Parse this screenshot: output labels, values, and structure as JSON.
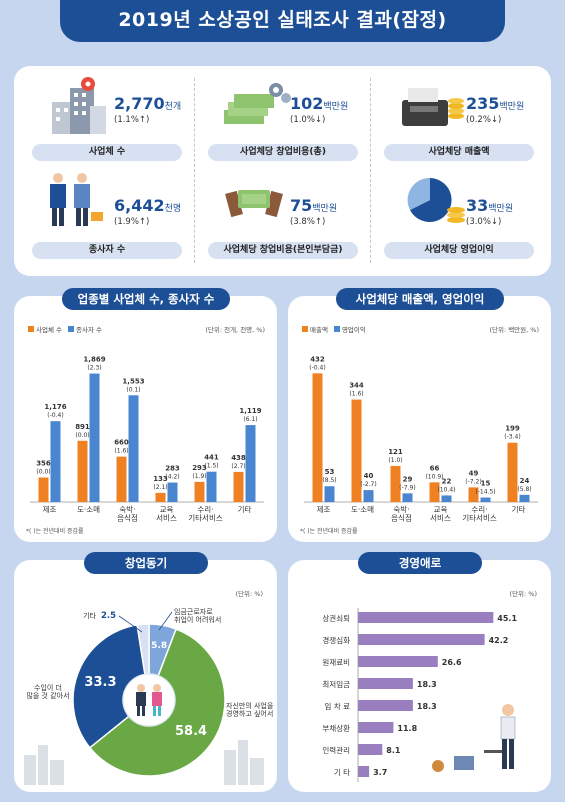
{
  "header": {
    "title": "2019년 소상공인 실태조사 결과(잠정)"
  },
  "colors": {
    "navy": "#1d4f96",
    "orange": "#f08122",
    "blue": "#4a86d0",
    "green": "#6aa845",
    "purple": "#9a7fc0",
    "light_blue": "#7ea6da"
  },
  "summary": [
    {
      "value": "2,770",
      "unit": "천개",
      "change": "(1.1%↑)",
      "label": "사업체 수",
      "icon": "building-icon"
    },
    {
      "value": "102",
      "unit": "백만원",
      "change": "(1.0%↓)",
      "label": "사업체당 창업비용(총)",
      "icon": "money-stack-icon"
    },
    {
      "value": "235",
      "unit": "백만원",
      "change": "(0.2%↓)",
      "label": "사업체당 매출액",
      "icon": "cash-register-icon"
    },
    {
      "value": "6,442",
      "unit": "천명",
      "change": "(1.9%↑)",
      "label": "종사자 수",
      "icon": "workers-icon"
    },
    {
      "value": "75",
      "unit": "백만원",
      "change": "(3.8%↑)",
      "label": "사업체당 창업비용(본인부담금)",
      "icon": "hands-money-icon"
    },
    {
      "value": "33",
      "unit": "백만원",
      "change": "(3.0%↓)",
      "label": "사업체당 영업이익",
      "icon": "pie-coins-icon"
    }
  ],
  "industry_panel": {
    "title": "업종별 사업체 수, 종사자 수",
    "unit": "(단위: 천개, 천명, %)",
    "legend": [
      "사업체 수",
      "종사자 수"
    ],
    "footnote": "*(   )는 전년대비 증감률"
  },
  "sales_panel": {
    "title": "사업체당 매출액, 영업이익",
    "unit": "(단위: 백만원, %)",
    "legend": [
      "매출액",
      "영업이익"
    ],
    "footnote": "*(   )는 전년대비 증감률"
  },
  "motive_panel": {
    "title": "창업동기",
    "unit": "(단위: %)"
  },
  "difficulty_panel": {
    "title": "경영애로",
    "unit": "(단위: %)"
  },
  "chart_data": [
    {
      "type": "bar",
      "title": "업종별 사업체 수, 종사자 수",
      "categories": [
        "제조",
        "도·소매",
        "숙박·\n음식점",
        "교육\n서비스",
        "수리·\n기타서비스",
        "기타"
      ],
      "series": [
        {
          "name": "사업체 수",
          "values": [
            356,
            891,
            660,
            133,
            293,
            438
          ],
          "labels": [
            "356",
            "891",
            "660",
            "133",
            "293",
            "438"
          ],
          "changes": [
            "(0.0)",
            "(0.0)",
            "(1.6)",
            "(2.1)",
            "(1.9)",
            "(2.7)"
          ]
        },
        {
          "name": "종사자 수",
          "values": [
            1176,
            1869,
            1553,
            283,
            441,
            1119
          ],
          "labels": [
            "1,176",
            "1,869",
            "1,553",
            "283",
            "441",
            "1,119"
          ],
          "changes": [
            "(-0.4)",
            "(2.3)",
            "(0.1)",
            "(4.2)",
            "(1.5)",
            "(6.1)"
          ]
        }
      ]
    },
    {
      "type": "bar",
      "title": "사업체당 매출액, 영업이익",
      "categories": [
        "제조",
        "도·소매",
        "숙박·\n음식점",
        "교육\n서비스",
        "수리·\n기타서비스",
        "기타"
      ],
      "series": [
        {
          "name": "매출액",
          "values": [
            432,
            344,
            121,
            66,
            49,
            199
          ],
          "labels": [
            "432",
            "344",
            "121",
            "66",
            "49",
            "199"
          ],
          "changes": [
            "(-0.4)",
            "(1.6)",
            "(1.0)",
            "(10.9)",
            "(-7.2)",
            "(-3.4)"
          ]
        },
        {
          "name": "영업이익",
          "values": [
            53,
            40,
            29,
            22,
            15,
            24
          ],
          "labels": [
            "53",
            "40",
            "29",
            "22",
            "15",
            "24"
          ],
          "changes": [
            "(8.5)",
            "(-2.7)",
            "(-7.9)",
            "(10.4)",
            "(-14.5)",
            "(5.8)"
          ]
        }
      ]
    },
    {
      "type": "pie",
      "title": "창업동기",
      "slices": [
        {
          "label": "자신만의 사업을\n경영하고 싶어서",
          "value": 58.4,
          "color": "#6aa845"
        },
        {
          "label": "수입이 더\n많을 것 같아서",
          "value": 33.3,
          "color": "#1d4f96"
        },
        {
          "label": "기타",
          "value": 2.5,
          "color": "#d7e1f1"
        },
        {
          "label": "임금근로자로\n취업이 어려워서",
          "value": 5.8,
          "color": "#7ea6da"
        }
      ]
    },
    {
      "type": "bar",
      "orientation": "horizontal",
      "title": "경영애로",
      "categories": [
        "상권쇠퇴",
        "경쟁심화",
        "원재료비",
        "최저임금",
        "임 차 료",
        "부채상환",
        "인력관리",
        "기    타"
      ],
      "values": [
        45.1,
        42.2,
        26.6,
        18.3,
        18.3,
        11.8,
        8.1,
        3.7
      ],
      "xlim": [
        0,
        50
      ]
    }
  ]
}
